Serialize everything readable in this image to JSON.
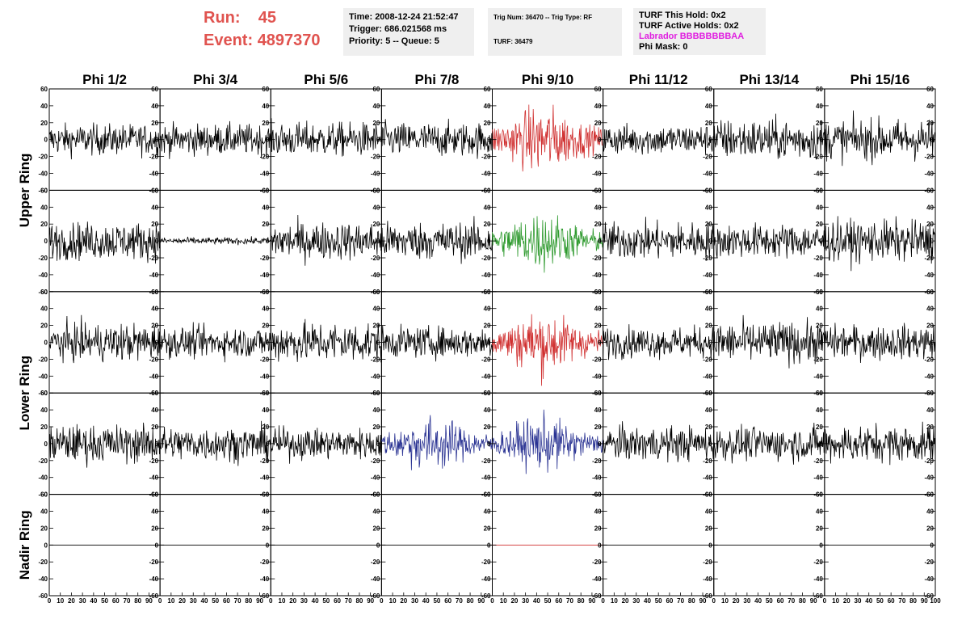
{
  "header": {
    "run_label": "Run:",
    "run_value": "45",
    "event_label": "Event:",
    "event_value": "4897370",
    "time": "Time: 2008-12-24 21:52:47",
    "trigger": "Trigger: 686.021568 ms",
    "priority": "Priority: 5 -- Queue: 5",
    "trig_num": "Trig Num: 36470 -- Trig Type: RF",
    "turf": "TURF: 36479",
    "turf_hold": "TURF This Hold: 0x2",
    "turf_active": "TURF Active Holds: 0x2",
    "labrador": "Labrador BBBBBBBBAA",
    "phi_mask": "Phi Mask: 0",
    "run_color": "#e0534f",
    "labrador_color": "#e01ee0"
  },
  "chart_data": {
    "type": "line",
    "columns": [
      "Phi 1/2",
      "Phi 3/4",
      "Phi 5/6",
      "Phi 7/8",
      "Phi 9/10",
      "Phi 11/12",
      "Phi 13/14",
      "Phi 15/16"
    ],
    "rows": [
      "Upper Ring",
      "Lower Ring",
      "Nadir Ring"
    ],
    "y_ticks": [
      "60",
      "40",
      "20",
      "0",
      "-20",
      "-40",
      "-60"
    ],
    "x_ticks": [
      "0",
      "10",
      "20",
      "30",
      "40",
      "50",
      "60",
      "70",
      "80",
      "90",
      "100"
    ],
    "ylim": [
      -60,
      60
    ],
    "xlim": [
      0,
      100
    ],
    "panels": [
      {
        "row": 0,
        "col": 0,
        "amp": 9,
        "color": "#000000"
      },
      {
        "row": 0,
        "col": 1,
        "amp": 9,
        "color": "#000000"
      },
      {
        "row": 0,
        "col": 2,
        "amp": 10,
        "color": "#000000"
      },
      {
        "row": 0,
        "col": 3,
        "amp": 10,
        "color": "#000000"
      },
      {
        "row": 0,
        "col": 4,
        "amp": 15,
        "color": "#d03030",
        "packet": true
      },
      {
        "row": 0,
        "col": 5,
        "amp": 9,
        "color": "#000000"
      },
      {
        "row": 0,
        "col": 6,
        "amp": 12,
        "color": "#000000"
      },
      {
        "row": 0,
        "col": 7,
        "amp": 12,
        "color": "#000000"
      },
      {
        "row": 1,
        "col": 0,
        "amp": 11,
        "color": "#000000"
      },
      {
        "row": 1,
        "col": 1,
        "amp": 2,
        "color": "#000000"
      },
      {
        "row": 1,
        "col": 2,
        "amp": 11,
        "color": "#000000"
      },
      {
        "row": 1,
        "col": 3,
        "amp": 11,
        "color": "#000000"
      },
      {
        "row": 1,
        "col": 4,
        "amp": 13,
        "color": "#2e9a2e",
        "packet": true
      },
      {
        "row": 1,
        "col": 5,
        "amp": 11,
        "color": "#000000"
      },
      {
        "row": 1,
        "col": 6,
        "amp": 10,
        "color": "#000000"
      },
      {
        "row": 1,
        "col": 7,
        "amp": 12,
        "color": "#000000"
      },
      {
        "row": 2,
        "col": 0,
        "amp": 11,
        "color": "#000000"
      },
      {
        "row": 2,
        "col": 1,
        "amp": 9,
        "color": "#000000"
      },
      {
        "row": 2,
        "col": 2,
        "amp": 12,
        "color": "#000000"
      },
      {
        "row": 2,
        "col": 3,
        "amp": 9,
        "color": "#000000"
      },
      {
        "row": 2,
        "col": 4,
        "amp": 14,
        "color": "#d03030",
        "packet": true
      },
      {
        "row": 2,
        "col": 5,
        "amp": 9,
        "color": "#000000"
      },
      {
        "row": 2,
        "col": 6,
        "amp": 12,
        "color": "#000000"
      },
      {
        "row": 2,
        "col": 7,
        "amp": 10,
        "color": "#000000"
      },
      {
        "row": 3,
        "col": 0,
        "amp": 11,
        "color": "#000000"
      },
      {
        "row": 3,
        "col": 1,
        "amp": 10,
        "color": "#000000"
      },
      {
        "row": 3,
        "col": 2,
        "amp": 9,
        "color": "#000000"
      },
      {
        "row": 3,
        "col": 3,
        "amp": 12,
        "color": "#2a3393",
        "packet": true
      },
      {
        "row": 3,
        "col": 4,
        "amp": 12,
        "color": "#2a3393",
        "packet": true
      },
      {
        "row": 3,
        "col": 5,
        "amp": 10,
        "color": "#000000"
      },
      {
        "row": 3,
        "col": 6,
        "amp": 10,
        "color": "#000000"
      },
      {
        "row": 3,
        "col": 7,
        "amp": 11,
        "color": "#000000"
      },
      {
        "row": 4,
        "col": 0,
        "amp": 0,
        "color": "#000000"
      },
      {
        "row": 4,
        "col": 1,
        "amp": 0,
        "color": "#000000"
      },
      {
        "row": 4,
        "col": 2,
        "amp": 0,
        "color": "#000000"
      },
      {
        "row": 4,
        "col": 3,
        "amp": 0,
        "color": "#000000"
      },
      {
        "row": 4,
        "col": 4,
        "amp": 0,
        "color": "#d03030"
      },
      {
        "row": 4,
        "col": 5,
        "amp": 0,
        "color": "#000000"
      },
      {
        "row": 4,
        "col": 6,
        "amp": 0,
        "color": "#000000"
      },
      {
        "row": 4,
        "col": 7,
        "amp": 0,
        "color": "#000000"
      }
    ]
  }
}
